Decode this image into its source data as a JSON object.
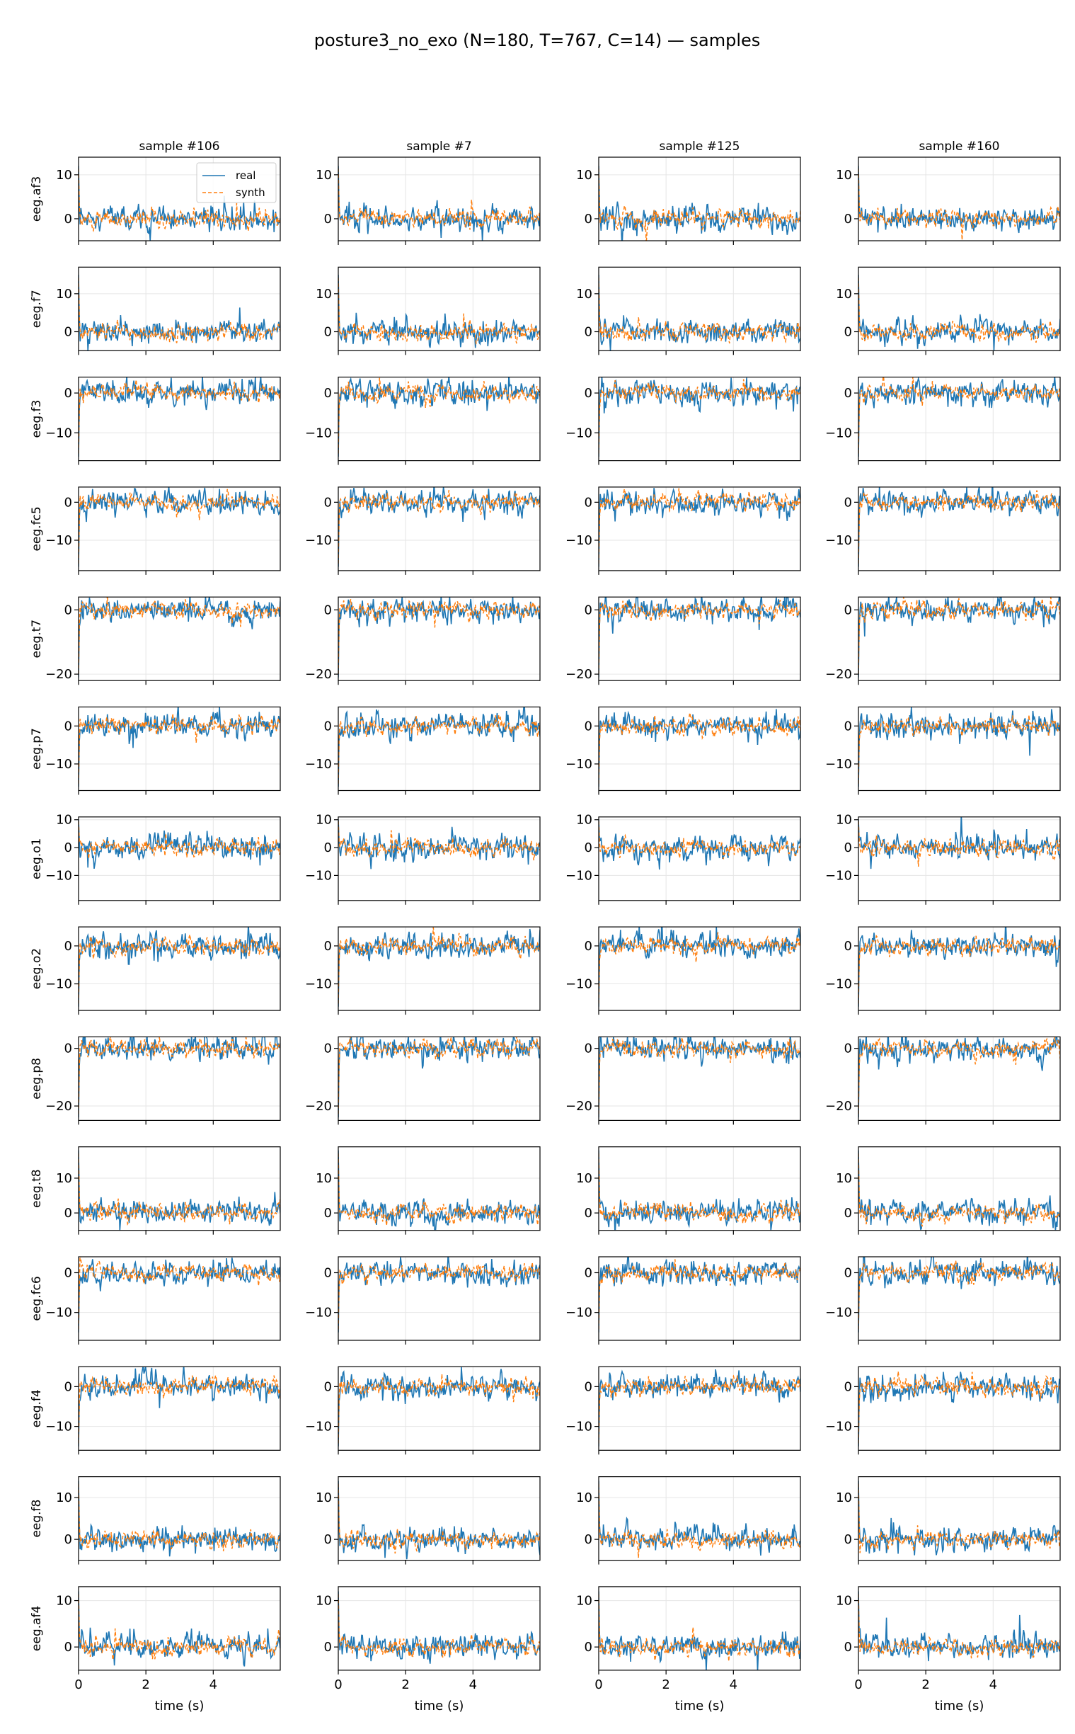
{
  "title": "posture3_no_exo (N=180, T=767, C=14) — samples",
  "columns": [
    "sample #106",
    "sample #7",
    "sample #125",
    "sample #160"
  ],
  "channels": [
    "eeg.af3",
    "eeg.f7",
    "eeg.f3",
    "eeg.fc5",
    "eeg.t7",
    "eeg.p7",
    "eeg.o1",
    "eeg.o2",
    "eeg.p8",
    "eeg.t8",
    "eeg.fc6",
    "eeg.f4",
    "eeg.f8",
    "eeg.af4"
  ],
  "xlabel": "time (s)",
  "legend": {
    "placement": "upper-right of first panel",
    "entries": [
      "real",
      "synth"
    ]
  },
  "colors": {
    "real": "#1f77b4",
    "synth": "#ff7f0e",
    "grid": "#e6e6e6"
  },
  "chart_data": {
    "type": "line",
    "grid": true,
    "xlim": [
      0,
      5.99
    ],
    "xticks": [
      0,
      2,
      4
    ],
    "time_points": 767,
    "series": [
      {
        "name": "real",
        "style": "solid"
      },
      {
        "name": "synth",
        "style": "dashed"
      }
    ],
    "rows": [
      {
        "channel": "eeg.af3",
        "ylim": [
          -5,
          14
        ],
        "yticks": [
          0,
          10
        ],
        "peak": 12
      },
      {
        "channel": "eeg.f7",
        "ylim": [
          -5,
          17
        ],
        "yticks": [
          0,
          10
        ],
        "peak": 15
      },
      {
        "channel": "eeg.f3",
        "ylim": [
          -17,
          4
        ],
        "yticks": [
          0,
          -10
        ],
        "peak": -16
      },
      {
        "channel": "eeg.fc5",
        "ylim": [
          -18,
          4
        ],
        "yticks": [
          0,
          -10
        ],
        "peak": -17
      },
      {
        "channel": "eeg.t7",
        "ylim": [
          -22,
          4
        ],
        "yticks": [
          0,
          -20
        ],
        "peak": -21
      },
      {
        "channel": "eeg.p7",
        "ylim": [
          -17,
          5
        ],
        "yticks": [
          0,
          -10
        ],
        "peak": -16
      },
      {
        "channel": "eeg.o1",
        "ylim": [
          -19,
          11
        ],
        "yticks": [
          10,
          0,
          -10
        ],
        "peak": 10
      },
      {
        "channel": "eeg.o2",
        "ylim": [
          -17,
          5
        ],
        "yticks": [
          0,
          -10
        ],
        "peak": -16
      },
      {
        "channel": "eeg.p8",
        "ylim": [
          -25,
          4
        ],
        "yticks": [
          0,
          -20
        ],
        "peak": -24
      },
      {
        "channel": "eeg.t8",
        "ylim": [
          -5,
          19
        ],
        "yticks": [
          0,
          10
        ],
        "peak": 18
      },
      {
        "channel": "eeg.fc6",
        "ylim": [
          -17,
          4
        ],
        "yticks": [
          0,
          -10
        ],
        "peak": -15
      },
      {
        "channel": "eeg.f4",
        "ylim": [
          -16,
          5
        ],
        "yticks": [
          0,
          -10
        ],
        "peak": -15
      },
      {
        "channel": "eeg.f8",
        "ylim": [
          -5,
          15
        ],
        "yticks": [
          0,
          10
        ],
        "peak": 14
      },
      {
        "channel": "eeg.af4",
        "ylim": [
          -5,
          13
        ],
        "yticks": [
          0,
          10
        ],
        "peak": 12
      }
    ]
  }
}
